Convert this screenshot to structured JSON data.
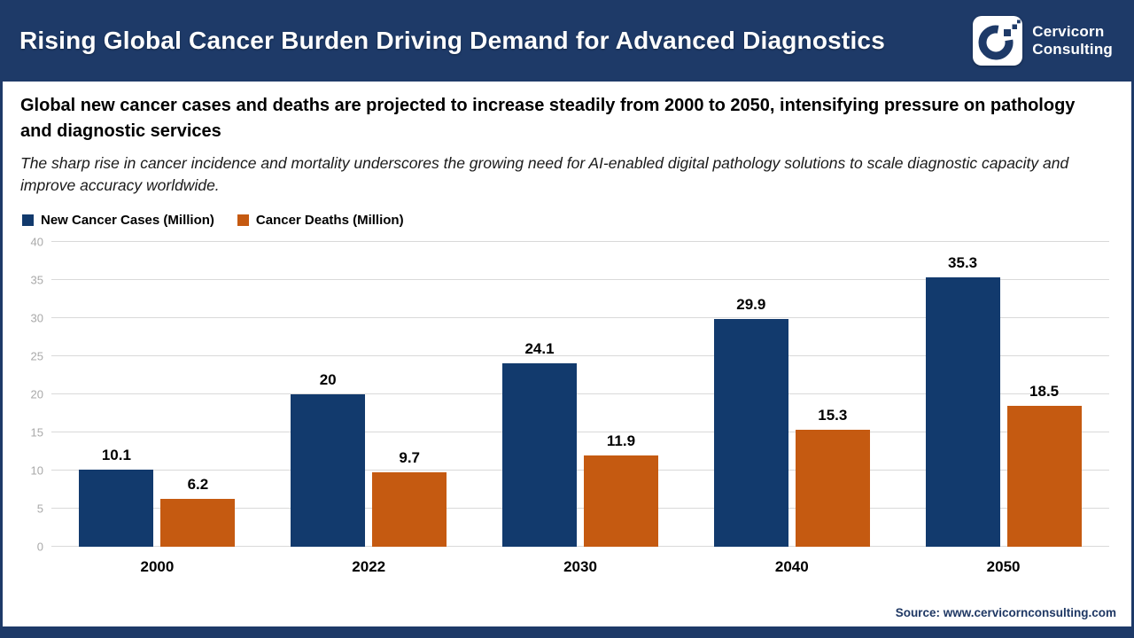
{
  "header": {
    "title": "Rising Global Cancer Burden Driving Demand for Advanced Diagnostics",
    "logo": {
      "line1": "Cervicorn",
      "line2": "Consulting"
    }
  },
  "description": {
    "headline": "Global new cancer cases and deaths are projected to increase steadily from 2000 to 2050, intensifying pressure on pathology and diagnostic services",
    "subtext": "The sharp rise in cancer incidence and mortality underscores the growing need for AI-enabled digital pathology solutions to scale diagnostic capacity and improve accuracy worldwide."
  },
  "colors": {
    "navy": "#1E3A68",
    "bar_blue": "#123A6D",
    "bar_orange": "#C55A11",
    "gridline": "#D9D9D9",
    "tick_label": "#A9A9A9"
  },
  "chart_data": {
    "type": "bar",
    "title": "",
    "categories": [
      "2000",
      "2022",
      "2030",
      "2040",
      "2050"
    ],
    "series": [
      {
        "name": "New Cancer Cases (Million)",
        "color": "#123A6D",
        "values": [
          10.1,
          20,
          24.1,
          29.9,
          35.3
        ],
        "labels": [
          "10.1",
          "20",
          "24.1",
          "29.9",
          "35.3"
        ]
      },
      {
        "name": "Cancer Deaths (Million)",
        "color": "#C55A11",
        "values": [
          6.2,
          9.7,
          11.9,
          15.3,
          18.5
        ],
        "labels": [
          "6.2",
          "9.7",
          "11.9",
          "15.3",
          "18.5"
        ]
      }
    ],
    "xlabel": "",
    "ylabel": "",
    "ylim": [
      0,
      40
    ],
    "yticks": [
      0,
      5,
      10,
      15,
      20,
      25,
      30,
      35,
      40
    ],
    "grid": true,
    "legend_position": "top-left"
  },
  "footer": {
    "source": "Source: www.cervicornconsulting.com"
  }
}
